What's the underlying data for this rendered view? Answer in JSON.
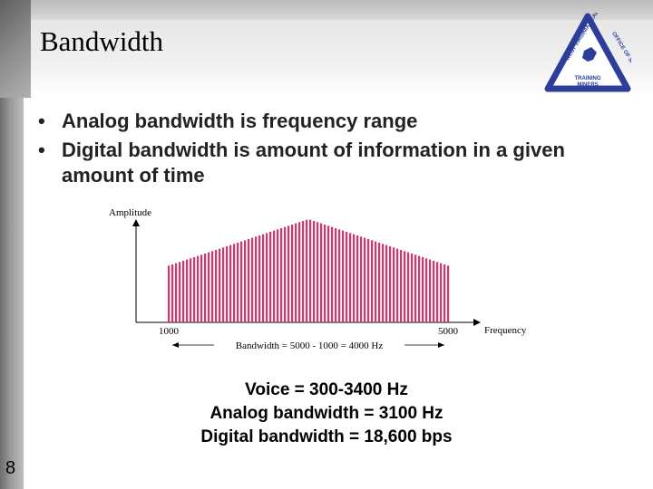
{
  "slide": {
    "title": "Bandwidth",
    "number": "8",
    "bullets": [
      "Analog bandwidth is frequency range",
      "Digital bandwidth is amount of information in a given amount of time"
    ],
    "facts": [
      "Voice = 300-3400 Hz",
      "Analog bandwidth = 3100 Hz",
      "Digital bandwidth = 18,600 bps"
    ]
  },
  "logo": {
    "left_text": "WEST VIRGINIA HEALTH",
    "right_text": "OFFICE OF SAFETY",
    "bottom_text_1": "TRAINING",
    "bottom_text_2": "MINERS",
    "color": "#2d3e9a"
  },
  "chart_data": {
    "type": "bar",
    "ylabel": "Amplitude",
    "xlabel": "Frequency",
    "x_ticks": [
      "1000",
      "5000"
    ],
    "annotation": "Bandwidth = 5000 - 1000 = 4000 Hz",
    "x_range": [
      1000,
      5000
    ],
    "bar_color": "#d6336c",
    "envelope": {
      "frequencies": [
        1000,
        3000,
        5000
      ],
      "relative_amplitudes": [
        0.55,
        1.0,
        0.55
      ]
    }
  }
}
